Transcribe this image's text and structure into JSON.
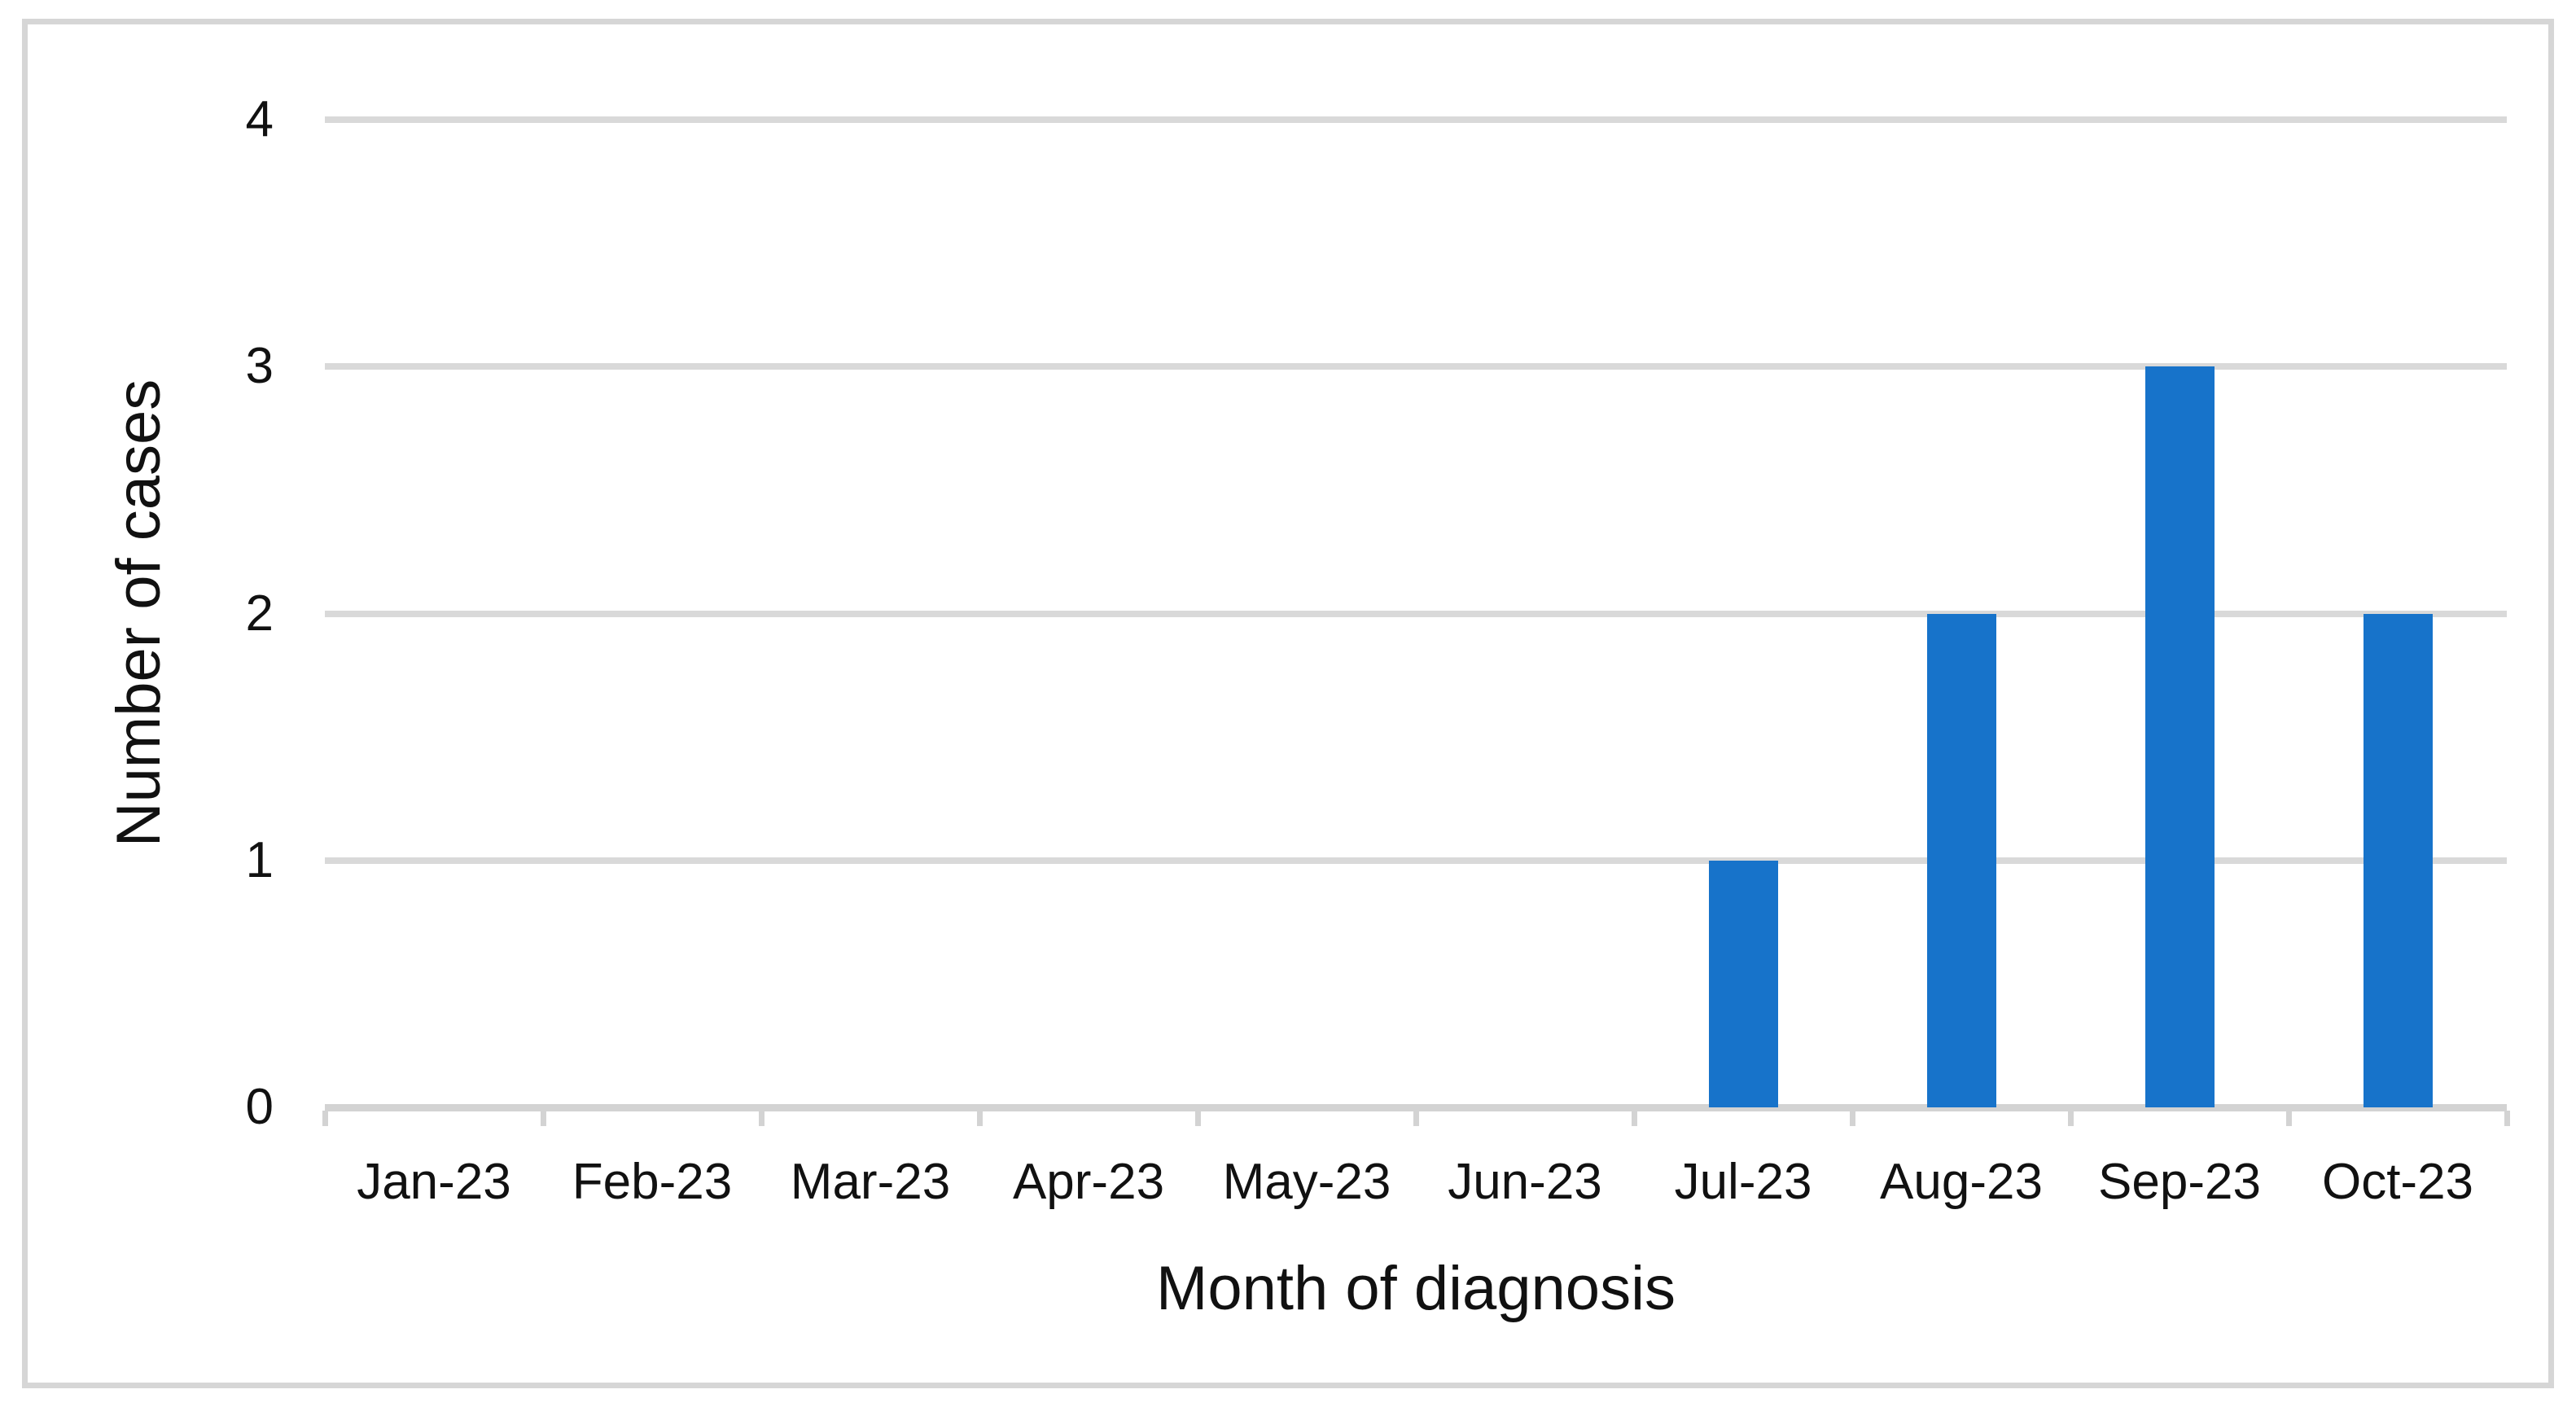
{
  "chart_data": {
    "type": "bar",
    "title": "",
    "categories": [
      "Jan-23",
      "Feb-23",
      "Mar-23",
      "Apr-23",
      "May-23",
      "Jun-23",
      "Jul-23",
      "Aug-23",
      "Sep-23",
      "Oct-23"
    ],
    "values": [
      0,
      0,
      0,
      0,
      0,
      0,
      1,
      2,
      3,
      2
    ],
    "xlabel": "Month of diagnosis",
    "ylabel": "Number of cases",
    "ylim": [
      0,
      4
    ],
    "yticks": [
      0,
      1,
      2,
      3,
      4
    ],
    "legend": "none",
    "grid": "horizontal",
    "colors": {
      "bar": "#1773CA",
      "gridline": "#D9D9D9",
      "axis": "#D3D3D3",
      "frame_border": "#D6D6D6",
      "text": "#111111",
      "background": "#FFFFFF"
    }
  }
}
